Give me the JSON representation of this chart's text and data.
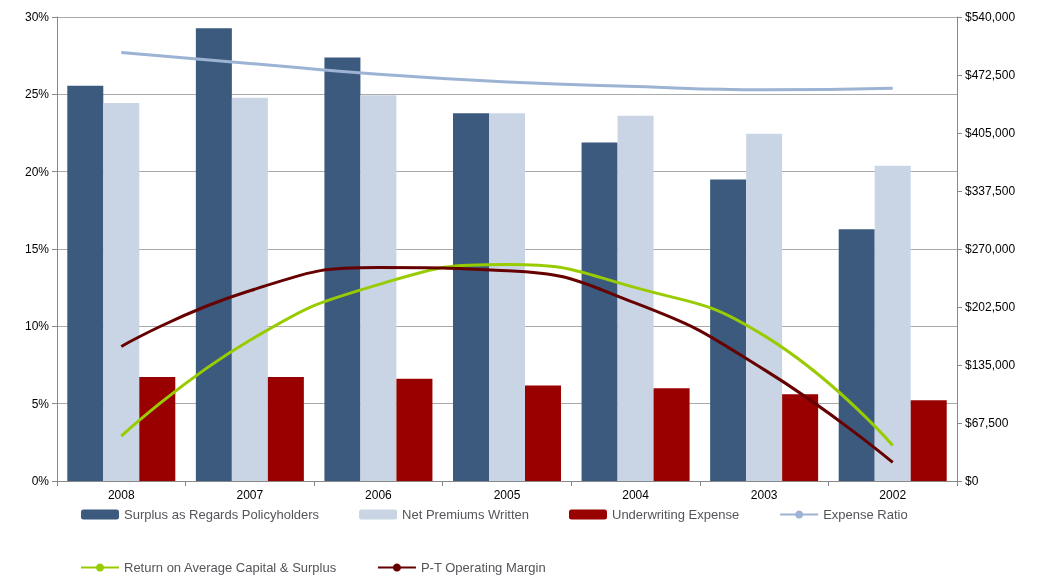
{
  "chart_data": {
    "type": "bar",
    "categories": [
      "2008",
      "2007",
      "2006",
      "2005",
      "2004",
      "2003",
      "2002"
    ],
    "series": [
      {
        "name": "Surplus as Regards Policyholders",
        "color": "#3b5a7e",
        "axis": "y2",
        "values": [
          460000,
          527000,
          493000,
          428000,
          394000,
          351000,
          293000
        ]
      },
      {
        "name": "Net Premiums Written",
        "color": "#c9d5e5",
        "axis": "y2",
        "values": [
          440000,
          446000,
          449000,
          428000,
          425000,
          404000,
          367000
        ]
      },
      {
        "name": "Underwriting Expense",
        "color": "#990000",
        "axis": "y2",
        "values": [
          121000,
          121000,
          119000,
          111000,
          108000,
          101000,
          94000
        ]
      },
      {
        "name": "Expense Ratio",
        "type": "line",
        "color": "#9db3d3",
        "values": [
          27.7,
          27.0,
          26.3,
          25.8,
          25.5,
          25.3,
          25.4
        ]
      },
      {
        "name": "Return on Average Capital & Surplus",
        "type": "line",
        "color": "#99cc00",
        "values": [
          2.9,
          9.1,
          12.7,
          14.0,
          12.5,
          9.4,
          2.3
        ]
      },
      {
        "name": "P-T Operating Margin",
        "type": "line",
        "color": "#660000",
        "values": [
          8.7,
          12.3,
          13.8,
          13.6,
          11.5,
          7.2,
          1.2
        ]
      }
    ],
    "ylim": [
      0,
      30
    ],
    "yticks": [
      {
        "value": 0,
        "label": "0%"
      },
      {
        "value": 5,
        "label": "5%"
      },
      {
        "value": 10,
        "label": "10%"
      },
      {
        "value": 15,
        "label": "15%"
      },
      {
        "value": 20,
        "label": "20%"
      },
      {
        "value": 25,
        "label": "25%"
      },
      {
        "value": 30,
        "label": "30%"
      }
    ],
    "y2lim": [
      0,
      540000
    ],
    "y2ticks": [
      {
        "value": 0,
        "label": "$0"
      },
      {
        "value": 67500,
        "label": "$67,500"
      },
      {
        "value": 135000,
        "label": "$135,000"
      },
      {
        "value": 202500,
        "label": "$202,500"
      },
      {
        "value": 270000,
        "label": "$270,000"
      },
      {
        "value": 337500,
        "label": "$337,500"
      },
      {
        "value": 405000,
        "label": "$405,000"
      },
      {
        "value": 472500,
        "label": "$472,500"
      },
      {
        "value": 540000,
        "label": "$540,000"
      }
    ],
    "grid": "y",
    "legend": "bottom",
    "marker": "none",
    "line_style": "solid"
  }
}
